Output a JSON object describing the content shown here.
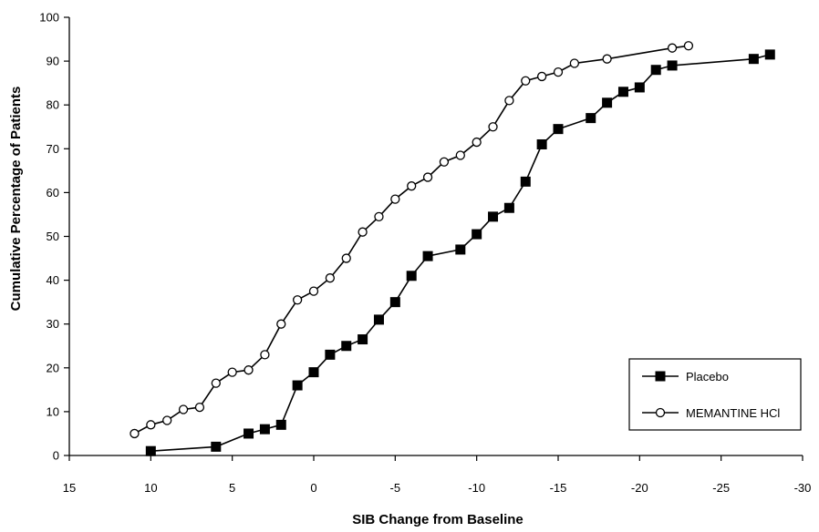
{
  "chart_data": {
    "type": "line",
    "title": "",
    "xlabel": "SIB Change from Baseline",
    "ylabel": "Cumulative Percentage of Patients",
    "xlim": [
      15,
      -30
    ],
    "ylim": [
      0,
      100
    ],
    "x_reversed": true,
    "x_ticks": [
      15,
      10,
      5,
      0,
      -5,
      -10,
      -15,
      -20,
      -25,
      -30
    ],
    "y_ticks": [
      0,
      10,
      20,
      30,
      40,
      50,
      60,
      70,
      80,
      90,
      100
    ],
    "grid": false,
    "legend_position": "bottom-right",
    "series": [
      {
        "name": "Placebo",
        "marker": "filled-square",
        "color": "#000000",
        "points": [
          [
            10,
            1
          ],
          [
            6,
            2
          ],
          [
            4,
            5
          ],
          [
            3,
            6
          ],
          [
            2,
            7
          ],
          [
            1,
            16
          ],
          [
            0,
            19
          ],
          [
            -1,
            23
          ],
          [
            -2,
            25
          ],
          [
            -3,
            26.5
          ],
          [
            -4,
            31
          ],
          [
            -5,
            35
          ],
          [
            -6,
            41
          ],
          [
            -7,
            45.5
          ],
          [
            -9,
            47
          ],
          [
            -10,
            50.5
          ],
          [
            -11,
            54.5
          ],
          [
            -12,
            56.5
          ],
          [
            -13,
            62.5
          ],
          [
            -14,
            71
          ],
          [
            -15,
            74.5
          ],
          [
            -17,
            77
          ],
          [
            -18,
            80.5
          ],
          [
            -19,
            83
          ],
          [
            -20,
            84
          ],
          [
            -21,
            88
          ],
          [
            -22,
            89
          ],
          [
            -27,
            90.5
          ],
          [
            -28,
            91.5
          ]
        ]
      },
      {
        "name": "MEMANTINE HCl",
        "marker": "open-circle",
        "color": "#000000",
        "points": [
          [
            11,
            5
          ],
          [
            10,
            7
          ],
          [
            9,
            8
          ],
          [
            8,
            10.5
          ],
          [
            7,
            11
          ],
          [
            6,
            16.5
          ],
          [
            5,
            19
          ],
          [
            4,
            19.5
          ],
          [
            3,
            23
          ],
          [
            2,
            30
          ],
          [
            1,
            35.5
          ],
          [
            0,
            37.5
          ],
          [
            -1,
            40.5
          ],
          [
            -2,
            45
          ],
          [
            -3,
            51
          ],
          [
            -4,
            54.5
          ],
          [
            -5,
            58.5
          ],
          [
            -6,
            61.5
          ],
          [
            -7,
            63.5
          ],
          [
            -8,
            67
          ],
          [
            -9,
            68.5
          ],
          [
            -10,
            71.5
          ],
          [
            -11,
            75
          ],
          [
            -12,
            81
          ],
          [
            -13,
            85.5
          ],
          [
            -14,
            86.5
          ],
          [
            -15,
            87.5
          ],
          [
            -16,
            89.5
          ],
          [
            -18,
            90.5
          ],
          [
            -22,
            93
          ],
          [
            -23,
            93.5
          ]
        ]
      }
    ]
  }
}
